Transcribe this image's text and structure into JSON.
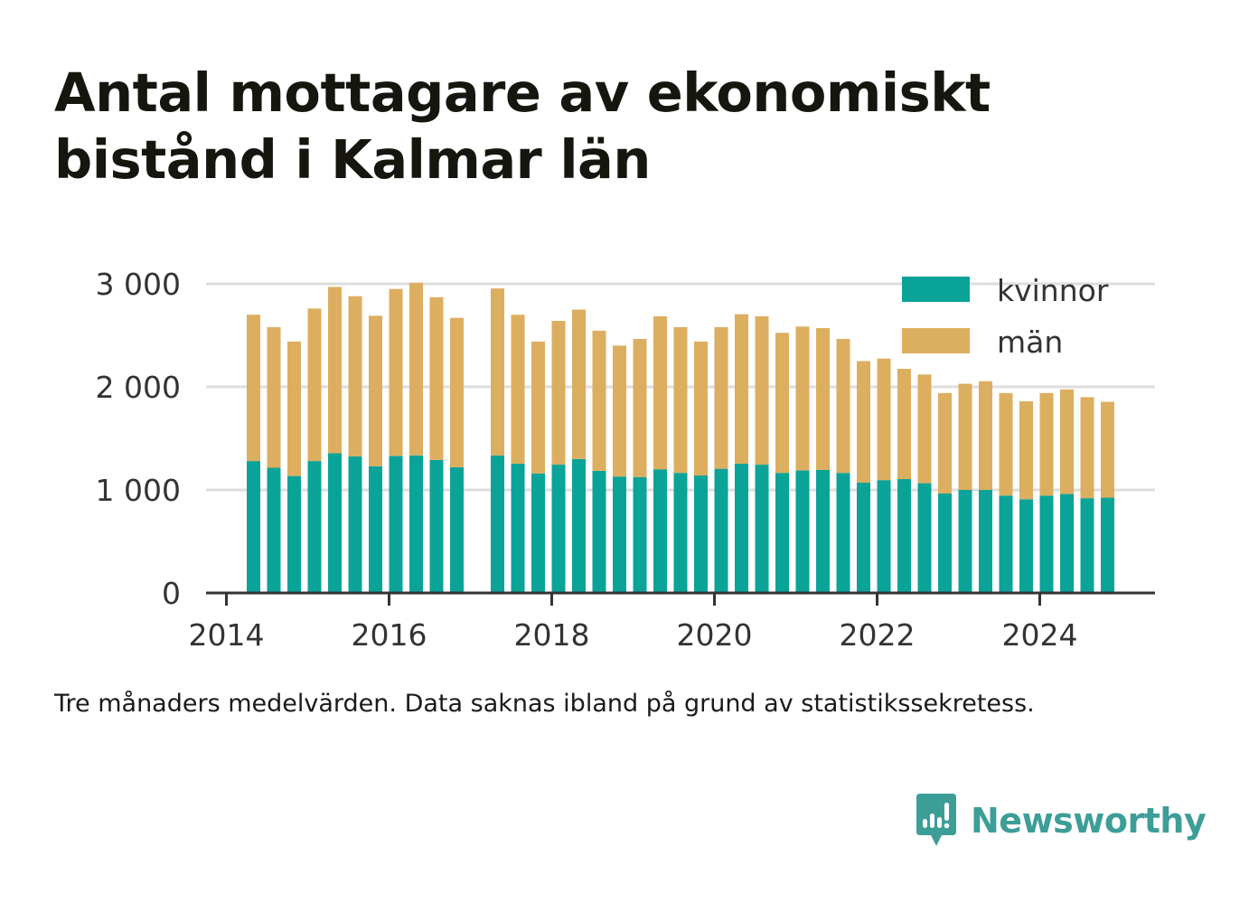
{
  "title": "Antal mottagare av ekonomiskt bistånd i Kalmar län",
  "note": "Tre månaders medelvärden. Data saknas ibland på grund av statistikssekretess.",
  "brand": {
    "name": "Newsworthy",
    "logo_icon": "bar-chart-speech-bubble-icon",
    "color": "#3d9e98"
  },
  "colors": {
    "kvinnor": "#0aa398",
    "man": "#dcae5f",
    "grid": "#dddddd",
    "axis": "#333333"
  },
  "chart_data": {
    "type": "bar",
    "stacked": true,
    "y_ticks": [
      0,
      1000,
      2000,
      3000
    ],
    "y_tick_labels": [
      "0",
      "1 000",
      "2 000",
      "3 000"
    ],
    "x_ticks": [
      2014,
      2016,
      2018,
      2020,
      2022,
      2024
    ],
    "x_tick_labels": [
      "2014",
      "2016",
      "2018",
      "2020",
      "2022",
      "2024"
    ],
    "xlim": [
      "2013-10",
      "2025-06"
    ],
    "ylim": [
      0,
      3200
    ],
    "grid": "horizontal",
    "legend_position": "top-right",
    "categories": [
      "2014-05",
      "2014-08",
      "2014-11",
      "2015-02",
      "2015-05",
      "2015-08",
      "2015-11",
      "2016-02",
      "2016-05",
      "2016-08",
      "2016-11",
      "2017-05",
      "2017-08",
      "2017-11",
      "2018-02",
      "2018-05",
      "2018-08",
      "2018-11",
      "2019-02",
      "2019-05",
      "2019-08",
      "2019-11",
      "2020-02",
      "2020-05",
      "2020-08",
      "2020-11",
      "2021-02",
      "2021-05",
      "2021-08",
      "2021-11",
      "2022-02",
      "2022-05",
      "2022-08",
      "2022-11",
      "2023-02",
      "2023-05",
      "2023-08",
      "2023-11",
      "2024-02",
      "2024-05",
      "2024-08",
      "2024-11"
    ],
    "series": [
      {
        "name": "kvinnor",
        "values": [
          1280,
          1215,
          1135,
          1280,
          1355,
          1325,
          1230,
          1330,
          1335,
          1290,
          1220,
          1335,
          1255,
          1160,
          1245,
          1300,
          1185,
          1130,
          1125,
          1200,
          1165,
          1140,
          1205,
          1255,
          1245,
          1165,
          1190,
          1195,
          1165,
          1070,
          1095,
          1105,
          1065,
          965,
          1000,
          1000,
          945,
          910,
          945,
          960,
          920,
          925
        ]
      },
      {
        "name": "män",
        "values": [
          1420,
          1365,
          1305,
          1480,
          1615,
          1555,
          1460,
          1620,
          1675,
          1580,
          1450,
          1620,
          1445,
          1280,
          1395,
          1450,
          1360,
          1270,
          1340,
          1485,
          1415,
          1300,
          1375,
          1450,
          1440,
          1360,
          1395,
          1375,
          1300,
          1180,
          1180,
          1070,
          1055,
          975,
          1030,
          1055,
          995,
          950,
          995,
          1015,
          980,
          930
        ]
      }
    ],
    "legend": [
      "kvinnor",
      "män"
    ]
  }
}
